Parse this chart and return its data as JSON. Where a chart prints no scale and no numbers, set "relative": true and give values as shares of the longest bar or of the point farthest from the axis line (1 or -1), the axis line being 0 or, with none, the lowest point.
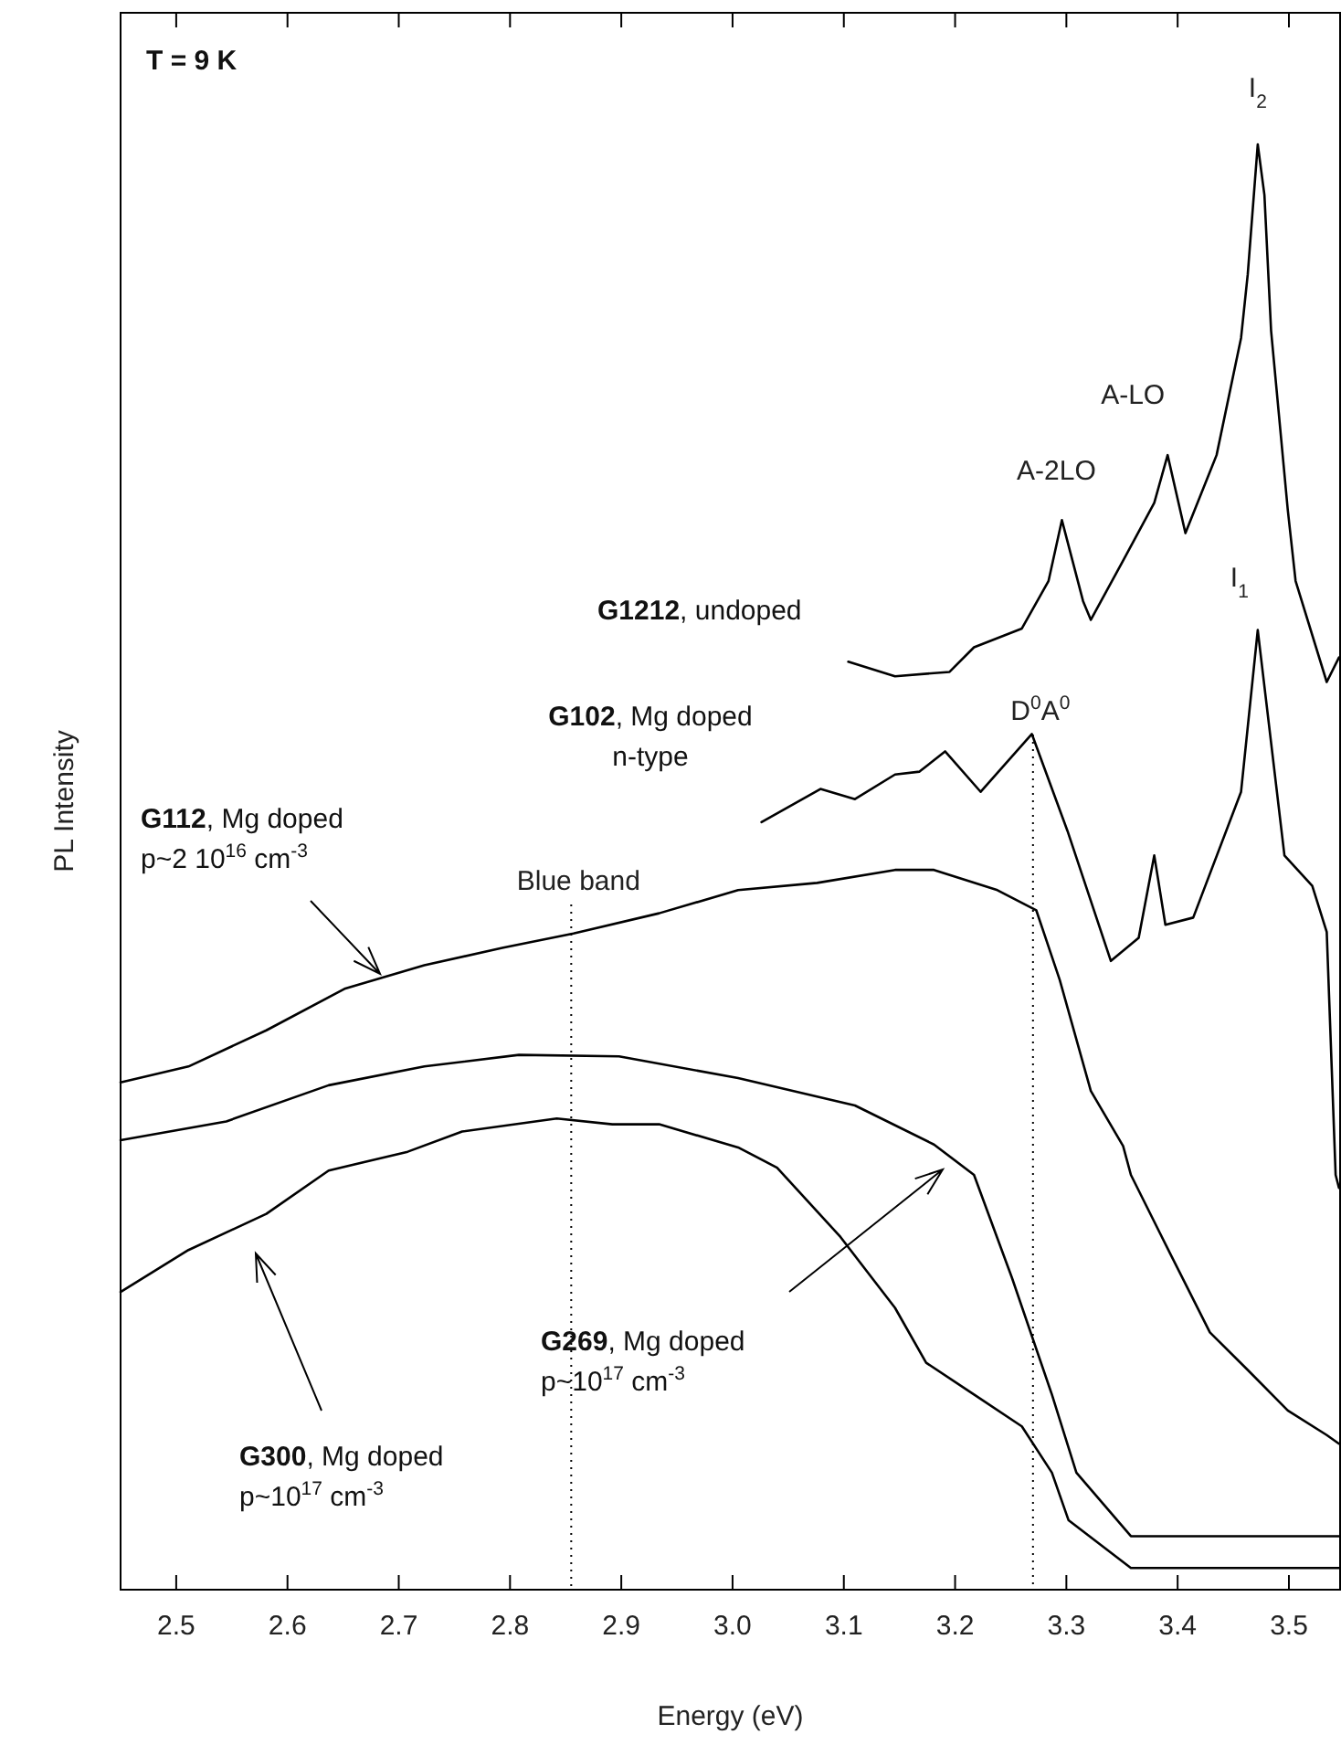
{
  "chart_data": {
    "type": "line",
    "relative": true,
    "xlabel": "Energy (eV)",
    "ylabel": "PL Intensity",
    "xlim": [
      2.45,
      3.546
    ],
    "xticks": [
      2.5,
      2.6,
      2.7,
      2.8,
      2.9,
      {
        "value": 3,
        "label": "3.0"
      },
      3.1,
      3.2,
      3.3,
      3.4,
      3.5
    ],
    "grid": false,
    "marker": "none",
    "line_style": "solid",
    "series": [
      {
        "color": "#000000",
        "x": [
          3.104,
          3.146,
          3.195,
          3.217,
          3.26,
          3.284,
          3.296,
          3.315,
          3.322,
          3.351,
          3.379,
          3.391,
          3.407,
          3.435,
          3.457,
          3.463,
          3.472,
          3.478,
          3.484,
          3.499,
          3.506,
          3.534,
          3.545
        ],
        "values": [
          0.642,
          0.632,
          0.635,
          0.652,
          0.665,
          0.698,
          0.74,
          0.684,
          0.671,
          0.712,
          0.752,
          0.785,
          0.731,
          0.785,
          0.866,
          0.91,
          1.0,
          0.965,
          0.871,
          0.747,
          0.698,
          0.628,
          0.645
        ]
      },
      {
        "color": "#000000",
        "x": [
          3.026,
          3.079,
          3.11,
          3.146,
          3.168,
          3.191,
          3.223,
          3.269,
          3.301,
          3.34,
          3.365,
          3.379,
          3.389,
          3.414,
          3.457,
          3.472,
          3.496,
          3.521,
          3.534,
          3.542,
          3.545
        ],
        "values": [
          0.531,
          0.554,
          0.547,
          0.564,
          0.566,
          0.58,
          0.552,
          0.592,
          0.525,
          0.435,
          0.451,
          0.508,
          0.46,
          0.465,
          0.552,
          0.664,
          0.508,
          0.487,
          0.455,
          0.287,
          0.278
        ]
      },
      {
        "color": "#000000",
        "x": [
          2.45,
          2.511,
          2.581,
          2.652,
          2.723,
          2.793,
          2.857,
          2.934,
          3.005,
          3.076,
          3.146,
          3.181,
          3.238,
          3.273,
          3.294,
          3.322,
          3.351,
          3.358,
          3.393,
          3.429,
          3.463,
          3.499,
          3.534,
          3.545
        ],
        "values": [
          0.351,
          0.362,
          0.387,
          0.416,
          0.432,
          0.444,
          0.454,
          0.468,
          0.484,
          0.489,
          0.498,
          0.498,
          0.484,
          0.47,
          0.422,
          0.345,
          0.307,
          0.287,
          0.233,
          0.178,
          0.152,
          0.124,
          0.107,
          0.101
        ]
      },
      {
        "color": "#000000",
        "x": [
          2.45,
          2.545,
          2.637,
          2.723,
          2.808,
          2.898,
          3.005,
          3.11,
          3.181,
          3.217,
          3.251,
          3.287,
          3.309,
          3.358,
          3.429,
          3.499,
          3.545
        ],
        "values": [
          0.311,
          0.324,
          0.349,
          0.362,
          0.37,
          0.369,
          0.354,
          0.335,
          0.308,
          0.287,
          0.216,
          0.135,
          0.081,
          0.037,
          0.037,
          0.037,
          0.037
        ]
      },
      {
        "color": "#000000",
        "x": [
          2.45,
          2.511,
          2.581,
          2.637,
          2.708,
          2.757,
          2.842,
          2.892,
          2.934,
          3.005,
          3.04,
          3.097,
          3.146,
          3.174,
          3.217,
          3.26,
          3.287,
          3.302,
          3.358,
          3.499,
          3.545
        ],
        "values": [
          0.206,
          0.235,
          0.26,
          0.29,
          0.303,
          0.317,
          0.326,
          0.322,
          0.322,
          0.306,
          0.292,
          0.244,
          0.195,
          0.157,
          0.135,
          0.113,
          0.081,
          0.048,
          0.015,
          0.015,
          0.015
        ]
      }
    ],
    "ref_lines": [
      {
        "axis": "x",
        "value": 2.855,
        "label": "Blue band",
        "line_style": "dotted"
      },
      {
        "axis": "x",
        "value": 3.27,
        "label": "D$^{0}$A$^{0}$",
        "line_style": "dotted"
      }
    ],
    "annotations": [
      "T = 9 K",
      {
        "text": "I$_{2}$",
        "x": 3.472,
        "y": 1.0
      },
      {
        "text": "A-LO",
        "x": 3.391,
        "y": 0.785
      },
      {
        "text": "A-2LO",
        "x": 3.296,
        "y": 0.74
      },
      {
        "text": "I$_{1}$",
        "x": 3.472,
        "y": 0.664
      },
      "G1212, undoped",
      "G102, Mg doped\nn-type",
      "G112, Mg doped\np~2 10$^{16}$ cm$^{-3}$",
      "G269, Mg doped\np~10$^{17}$ cm$^{-3}$",
      "G300, Mg doped\np~10$^{17}$ cm$^{-3}$"
    ]
  }
}
